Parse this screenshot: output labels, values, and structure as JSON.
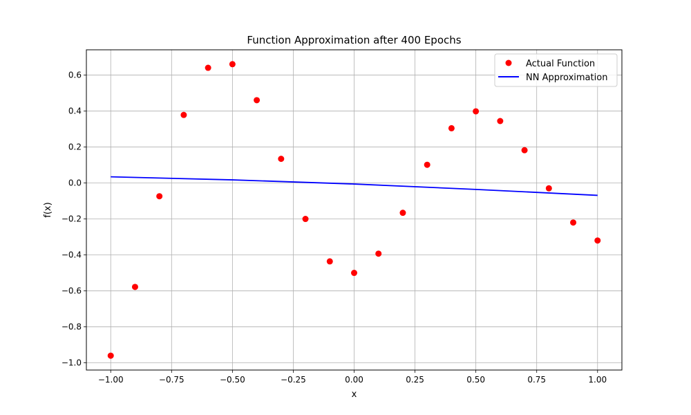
{
  "chart_data": {
    "type": "scatter",
    "title": "Function Approximation after 400 Epochs",
    "xlabel": "x",
    "ylabel": "f(x)",
    "xlim": [
      -1.1,
      1.1
    ],
    "ylim": [
      -1.04,
      0.74
    ],
    "grid": true,
    "legend_position": "top-right",
    "x_ticks": [
      -1.0,
      -0.75,
      -0.5,
      -0.25,
      0.0,
      0.25,
      0.5,
      0.75,
      1.0
    ],
    "x_tick_labels": [
      "−1.00",
      "−0.75",
      "−0.50",
      "−0.25",
      "0.00",
      "0.25",
      "0.50",
      "0.75",
      "1.00"
    ],
    "y_ticks": [
      -1.0,
      -0.8,
      -0.6,
      -0.4,
      -0.2,
      0.0,
      0.2,
      0.4,
      0.6
    ],
    "y_tick_labels": [
      "−1.0",
      "−0.8",
      "−0.6",
      "−0.4",
      "−0.2",
      "0.0",
      "0.2",
      "0.4",
      "0.6"
    ],
    "series": [
      {
        "name": "Actual Function",
        "kind": "scatter",
        "color": "#ff0000",
        "x": [
          -1.0,
          -0.9,
          -0.8,
          -0.7,
          -0.6,
          -0.5,
          -0.4,
          -0.3,
          -0.2,
          -0.1,
          0.0,
          0.1,
          0.2,
          0.3,
          0.4,
          0.5,
          0.6,
          0.7,
          0.8,
          0.9,
          1.0
        ],
        "y": [
          -0.96,
          -0.578,
          -0.074,
          0.378,
          0.64,
          0.66,
          0.46,
          0.134,
          -0.2,
          -0.436,
          -0.5,
          -0.393,
          -0.166,
          0.101,
          0.304,
          0.398,
          0.344,
          0.182,
          -0.03,
          -0.22,
          -0.32
        ]
      },
      {
        "name": "NN Approximation",
        "kind": "line",
        "color": "#0000ff",
        "x": [
          -1.0,
          -0.5,
          0.0,
          0.5,
          1.0
        ],
        "y": [
          0.034,
          0.017,
          -0.006,
          -0.036,
          -0.069
        ]
      }
    ]
  }
}
